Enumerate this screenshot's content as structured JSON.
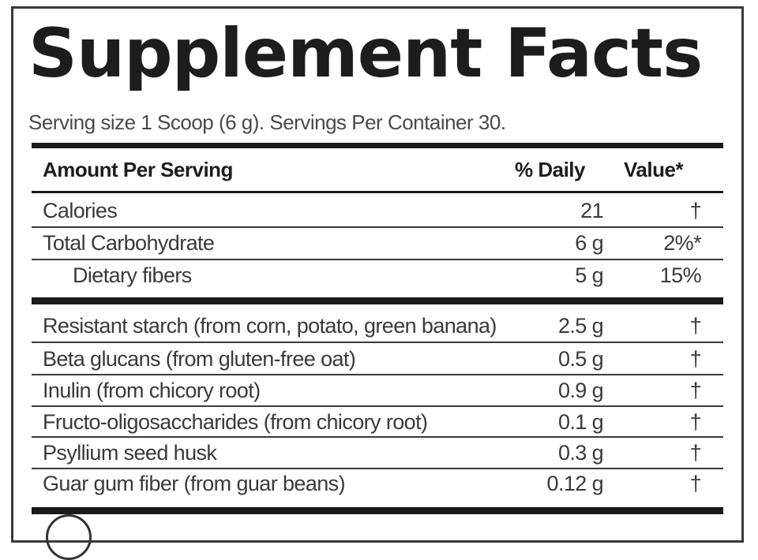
{
  "title": "Supplement Facts",
  "serving_text": "Serving size 1 Scoop (6 g). Servings Per Container 30.",
  "header": {
    "amount_label": "Amount Per Serving",
    "daily_label": "% Daily",
    "value_label": "Value*"
  },
  "nutrients": [
    {
      "label": "Calories",
      "amount": "21",
      "dv": "†"
    },
    {
      "label": "Total Carbohydrate",
      "amount": "6 g",
      "dv": "2%*"
    },
    {
      "label": "Dietary fibers",
      "amount": "5 g",
      "dv": "15%"
    }
  ],
  "ingredients": [
    {
      "label": "Resistant starch (from corn, potato, green banana)",
      "amount": "2.5 g",
      "dv": "†"
    },
    {
      "label": "Beta glucans (from gluten-free oat)",
      "amount": "0.5 g",
      "dv": "†"
    },
    {
      "label": "Inulin (from chicory root)",
      "amount": "0.9 g",
      "dv": "†"
    },
    {
      "label": "Fructo-oligosaccharides (from chicory root)",
      "amount": "0.1 g",
      "dv": "†"
    },
    {
      "label": "Psyllium seed husk",
      "amount": "0.3 g",
      "dv": "†"
    },
    {
      "label": "Guar gum fiber (from guar beans)",
      "amount": "0.12 g",
      "dv": "†"
    }
  ]
}
